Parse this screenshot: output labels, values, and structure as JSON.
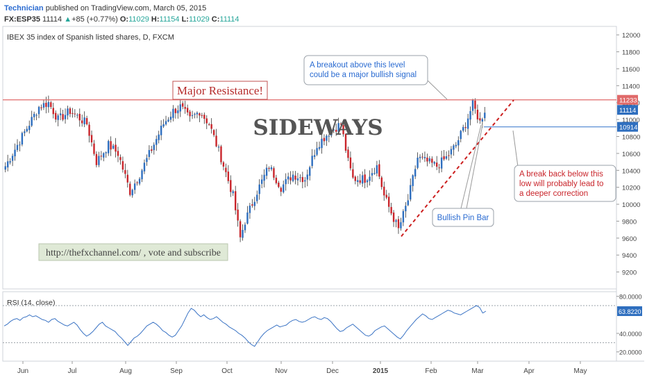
{
  "header": {
    "author": "Technician",
    "published_text": "published on TradingView.com, March 05, 2015"
  },
  "quote": {
    "symbol": "FX:ESP35",
    "last": "11114",
    "change": "+85 (+0.77%)",
    "open_label": "O:",
    "open": "11029",
    "high_label": "H:",
    "high": "11154",
    "low_label": "L:",
    "low": "11029",
    "close_label": "C:",
    "close": "11114"
  },
  "colors": {
    "up": "#2f6fbf",
    "down": "#c9252b",
    "resistance": "#e06a6a",
    "support": "#5b8fd6",
    "rsi": "#3a73c4",
    "trend": "#cc1f1f"
  },
  "chart_data": [
    {
      "type": "candlestick",
      "title": "IBEX 35 index of Spanish listed shares, D, FXCM",
      "ylim": [
        9000,
        12100
      ],
      "y_ticks": [
        9200,
        9400,
        9600,
        9800,
        10000,
        10200,
        10400,
        10600,
        10800,
        11000,
        11200,
        11400,
        11600,
        11800,
        12000
      ],
      "x_tick_labels": [
        "Jun",
        "Jul",
        "Aug",
        "Sep",
        "Oct",
        "Nov",
        "Dec",
        "2015",
        "Feb",
        "Mar",
        "Apr",
        "May"
      ],
      "anchors": [
        [
          0,
          10450
        ],
        [
          8,
          10850
        ],
        [
          14,
          11150
        ],
        [
          18,
          11200
        ],
        [
          22,
          11000
        ],
        [
          27,
          11100
        ],
        [
          34,
          10950
        ],
        [
          38,
          10500
        ],
        [
          43,
          10700
        ],
        [
          47,
          10600
        ],
        [
          52,
          10150
        ],
        [
          56,
          10350
        ],
        [
          61,
          10650
        ],
        [
          66,
          10950
        ],
        [
          70,
          11100
        ],
        [
          73,
          11150
        ],
        [
          77,
          11000
        ],
        [
          81,
          11100
        ],
        [
          85,
          10950
        ],
        [
          90,
          10550
        ],
        [
          95,
          10100
        ],
        [
          98,
          9600
        ],
        [
          100,
          9800
        ],
        [
          105,
          10150
        ],
        [
          110,
          10450
        ],
        [
          115,
          10200
        ],
        [
          120,
          10350
        ],
        [
          125,
          10300
        ],
        [
          130,
          10700
        ],
        [
          135,
          10850
        ],
        [
          140,
          10950
        ],
        [
          143,
          10500
        ],
        [
          145,
          10300
        ],
        [
          150,
          10300
        ],
        [
          155,
          10450
        ],
        [
          158,
          10100
        ],
        [
          161,
          9900
        ],
        [
          164,
          9700
        ],
        [
          168,
          10050
        ],
        [
          172,
          10550
        ],
        [
          176,
          10500
        ],
        [
          180,
          10450
        ],
        [
          184,
          10550
        ],
        [
          188,
          10700
        ],
        [
          192,
          10950
        ],
        [
          195,
          11180
        ],
        [
          198,
          10970
        ],
        [
          200,
          11114
        ]
      ],
      "price_labels": [
        {
          "name": "resistance",
          "value": 11233,
          "text": "11233"
        },
        {
          "name": "last",
          "value": 11114,
          "text": "11114"
        },
        {
          "name": "support",
          "value": 10914,
          "text": "10914"
        }
      ],
      "annotations": {
        "major_resistance": "Major Resistance!",
        "sideways": "SIDEWAYS",
        "breakout_line1": "A breakout above this level",
        "breakout_line2": "could be a major bullish signal",
        "breakdown_line1": "A break back below this",
        "breakdown_line2": "low will probably lead to",
        "breakdown_line3": "a deeper correction",
        "pin_bar": "Bullish Pin Bar",
        "website": "http://thefxchannel.com/ , vote and subscribe"
      }
    },
    {
      "type": "line",
      "title": "RSI (14, close)",
      "ylim": [
        10,
        85
      ],
      "y_ticks": [
        20,
        40,
        80
      ],
      "y_tick_labels": [
        "20.0000",
        "40.0000",
        "80.0000"
      ],
      "reference_lines": [
        30,
        70
      ],
      "last_label": "63.8220",
      "values": [
        48,
        50,
        53,
        55,
        56,
        54,
        57,
        58,
        60,
        58,
        59,
        57,
        55,
        54,
        52,
        55,
        56,
        53,
        51,
        49,
        48,
        50,
        52,
        49,
        44,
        40,
        37,
        39,
        42,
        46,
        50,
        52,
        48,
        46,
        44,
        42,
        38,
        35,
        31,
        27,
        31,
        35,
        37,
        40,
        44,
        48,
        50,
        52,
        50,
        47,
        43,
        41,
        38,
        36,
        38,
        43,
        48,
        55,
        62,
        67,
        65,
        61,
        58,
        60,
        57,
        55,
        56,
        58,
        55,
        52,
        50,
        47,
        45,
        43,
        40,
        38,
        35,
        31,
        28,
        26,
        31,
        36,
        40,
        43,
        45,
        47,
        49,
        47,
        48,
        49,
        52,
        54,
        55,
        53,
        52,
        53,
        55,
        57,
        58,
        56,
        55,
        57,
        56,
        53,
        49,
        45,
        42,
        43,
        46,
        48,
        50,
        47,
        44,
        41,
        38,
        37,
        39,
        43,
        45,
        47,
        48,
        45,
        42,
        39,
        36,
        34,
        38,
        43,
        47,
        51,
        55,
        58,
        61,
        59,
        56,
        55,
        57,
        59,
        61,
        63,
        65,
        64,
        62,
        61,
        60,
        62,
        64,
        66,
        68,
        70,
        68,
        62,
        64
      ],
      "value_count_note": ""
    }
  ]
}
